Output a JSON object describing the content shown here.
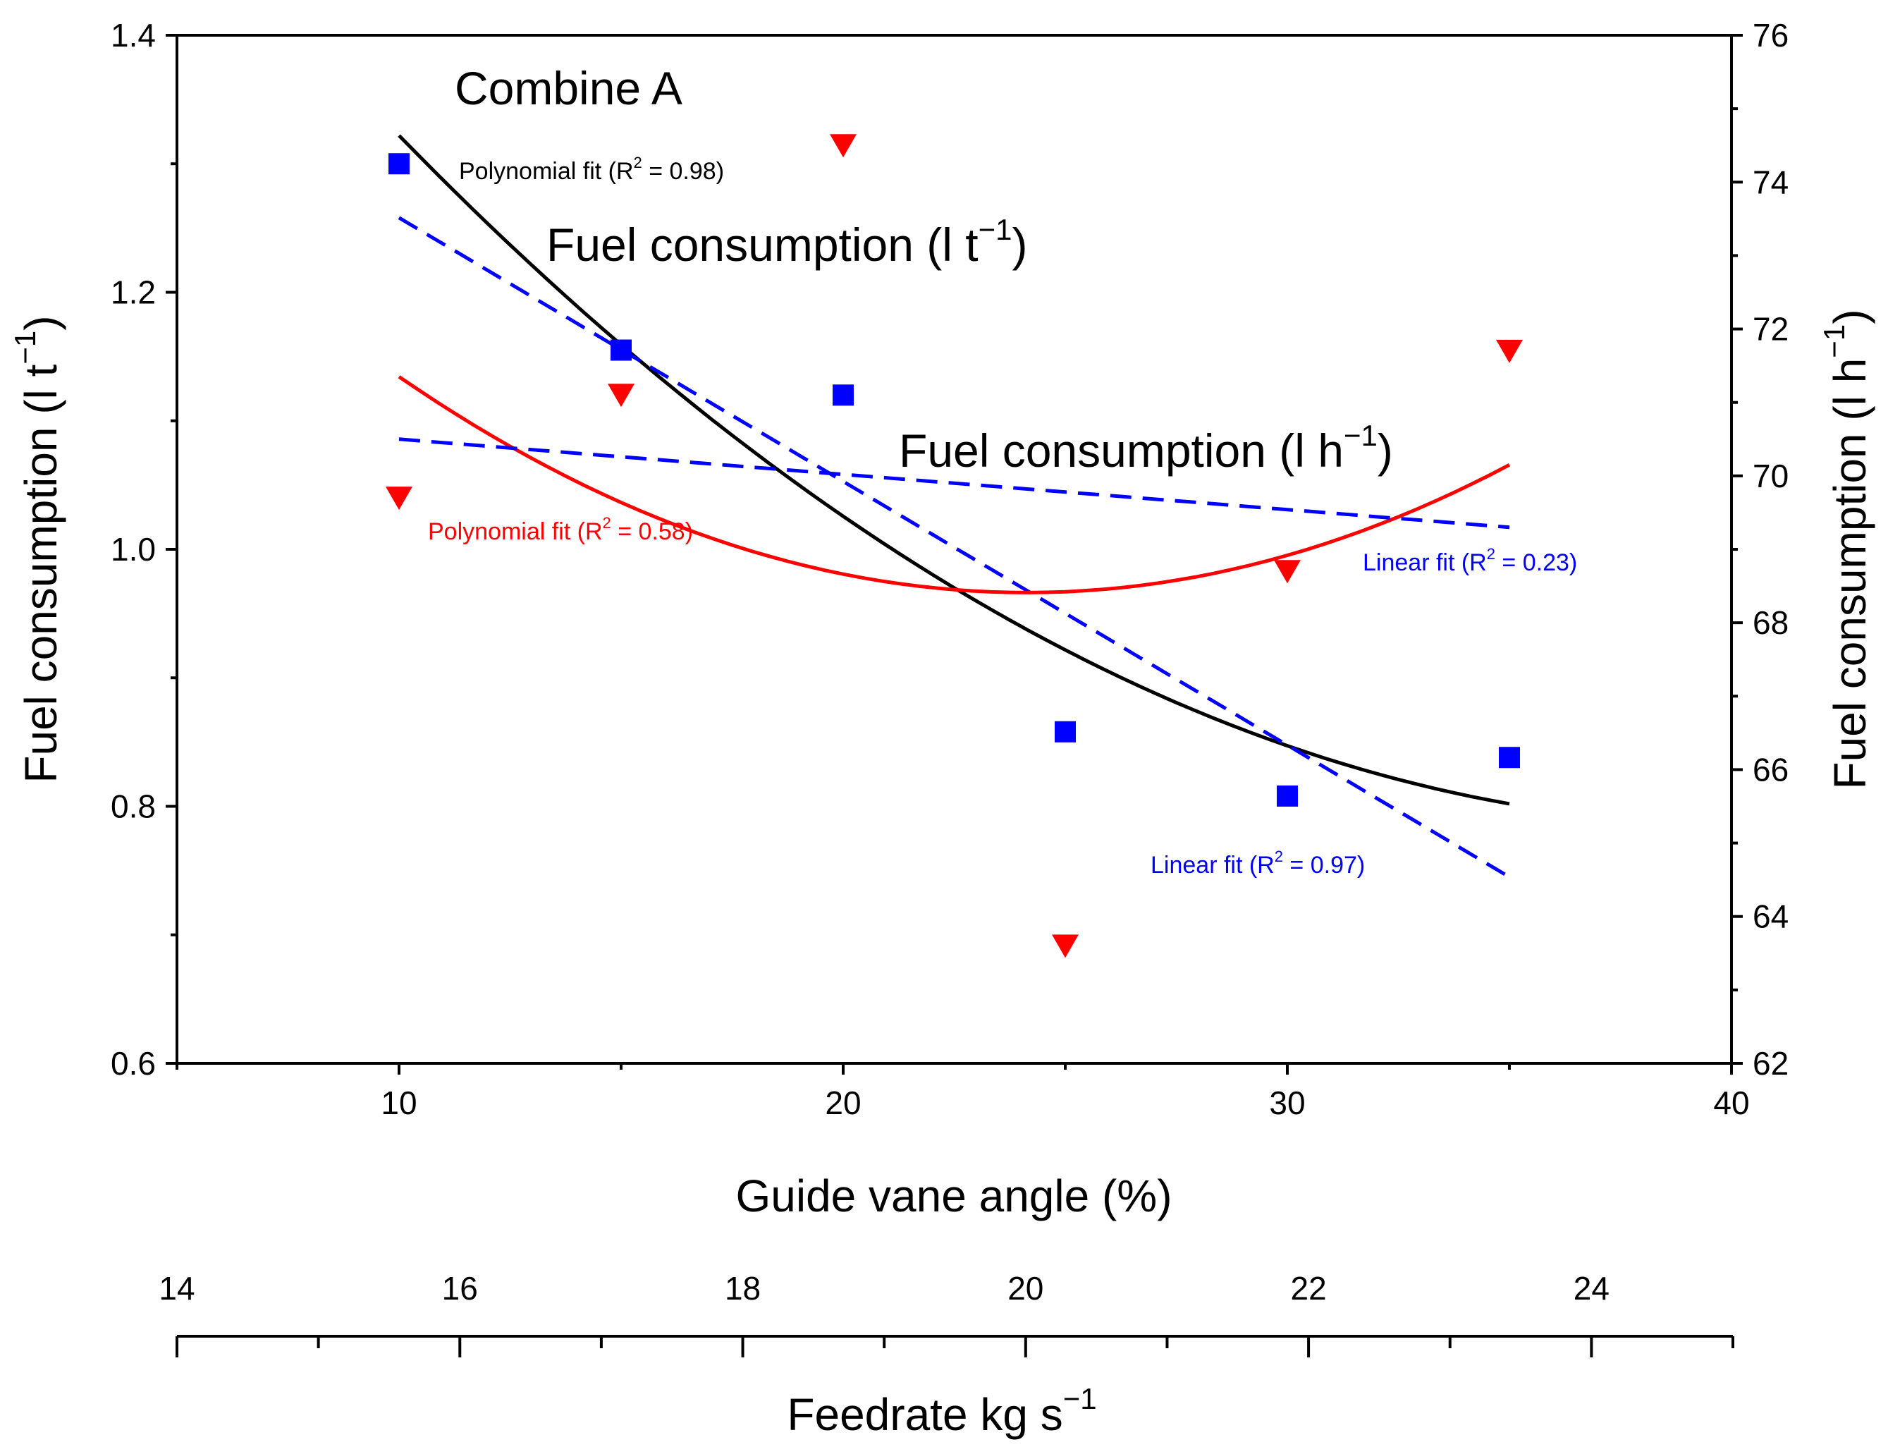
{
  "chart_data": {
    "type": "scatter",
    "title": "Combine A",
    "xlabel": "Guide vane angle (%)",
    "x2label_main": "Feedrate kg s",
    "x2label_sup": "−1",
    "ylabel_main": "Fuel consumption (l t",
    "ylabel_sup": "−1",
    "ylabel_close": ")",
    "y2label_main": "Fuel consumption (l h",
    "y2label_sup": "−1",
    "y2label_close": ")",
    "xlim": [
      5,
      40
    ],
    "ylim": [
      0.6,
      1.4
    ],
    "y2lim": [
      62,
      76
    ],
    "x2lim": [
      14,
      25
    ],
    "x_ticks": [
      10,
      20,
      30,
      40
    ],
    "x_minor_ticks": [
      5,
      15,
      25,
      35
    ],
    "y_ticks": [
      0.6,
      0.8,
      1.0,
      1.2,
      1.4
    ],
    "y_minor_ticks": [
      0.7,
      0.9,
      1.1,
      1.3
    ],
    "y2_ticks": [
      62,
      64,
      66,
      68,
      70,
      72,
      74,
      76
    ],
    "y2_minor_ticks": [
      63,
      65,
      67,
      69,
      71,
      73,
      75
    ],
    "x2_ticks": [
      14,
      16,
      18,
      20,
      22,
      24
    ],
    "x2_minor_ticks": [
      15,
      17,
      19,
      21,
      23,
      25
    ],
    "x_tick_labels": [
      "10",
      "20",
      "30",
      "40"
    ],
    "y_tick_labels": [
      "0.6",
      "0.8",
      "1.0",
      "1.2",
      "1.4"
    ],
    "y2_tick_labels": [
      "62",
      "64",
      "66",
      "68",
      "70",
      "72",
      "74",
      "76"
    ],
    "x2_tick_labels": [
      "14",
      "16",
      "18",
      "20",
      "22",
      "24"
    ],
    "series": [
      {
        "name": "Fuel consumption (l t⁻¹)",
        "axis": "left",
        "marker": "square",
        "color": "#0000ff",
        "x": [
          10,
          15,
          20,
          25,
          30,
          35
        ],
        "y": [
          1.3,
          1.155,
          1.12,
          0.858,
          0.808,
          0.838
        ]
      },
      {
        "name": "Fuel consumption (l h⁻¹)",
        "axis": "right",
        "marker": "triangle-down",
        "color": "#ff0000",
        "x": [
          10,
          15,
          20,
          25,
          30,
          35
        ],
        "y": [
          69.7,
          71.1,
          74.5,
          63.6,
          68.7,
          71.7
        ]
      }
    ],
    "fits": [
      {
        "name": "Polynomial fit (l t⁻¹)",
        "series": 0,
        "kind": "quadratic",
        "points": [
          [
            10,
            1.322
          ],
          [
            22.5,
            0.97
          ],
          [
            35,
            0.802
          ]
        ],
        "color": "#000000",
        "dashed": false
      },
      {
        "name": "Linear fit (l t⁻¹)",
        "series": 0,
        "kind": "linear",
        "points": [
          [
            10,
            1.258
          ],
          [
            35,
            0.745
          ]
        ],
        "color": "#0000ff",
        "dashed": true
      },
      {
        "name": "Polynomial fit (l h⁻¹)",
        "series": 1,
        "kind": "quadratic",
        "points": [
          [
            10,
            71.35
          ],
          [
            22.5,
            68.45
          ],
          [
            35,
            70.15
          ]
        ],
        "color": "#ff0000",
        "dashed": false
      },
      {
        "name": "Linear fit (l h⁻¹)",
        "series": 1,
        "kind": "linear",
        "points": [
          [
            10,
            70.5
          ],
          [
            35,
            69.3
          ]
        ],
        "color": "#0000ff",
        "dashed": true
      }
    ],
    "annotations": {
      "combine": "Combine A",
      "lt_label_main": "Fuel consumption (l t",
      "lt_label_sup": "−1",
      "lt_label_close": ")",
      "lh_label_main": "Fuel consumption (l h",
      "lh_label_sup": "−1",
      "lh_label_close": ")",
      "poly_black_pre": "Polynomial fit (R",
      "poly_black_sup": "2",
      "poly_black_post": " = 0.98)",
      "poly_red_pre": "Polynomial fit (R",
      "poly_red_sup": "2",
      "poly_red_post": " = 0.58)",
      "lin_lt_pre": "Linear fit (R",
      "lin_lt_sup": "2",
      "lin_lt_post": " = 0.97)",
      "lin_lh_pre": "Linear fit (R",
      "lin_lh_sup": "2",
      "lin_lh_post": " = 0.23)",
      "black_color": "#000000",
      "red_color": "#ff0000",
      "blue_color": "#0000ff"
    }
  }
}
